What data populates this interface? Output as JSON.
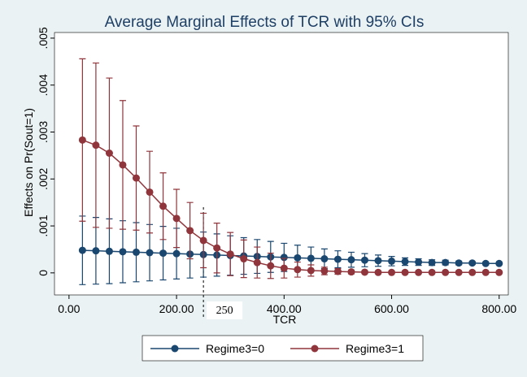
{
  "chart_data": {
    "type": "line",
    "title": "Average Marginal Effects of TCR with 95% CIs",
    "x_label": "TCR",
    "y_label": "Effects on Pr(Sout=1)",
    "x": [
      25,
      50,
      75,
      100,
      125,
      150,
      175,
      200,
      225,
      250,
      275,
      300,
      325,
      350,
      375,
      400,
      425,
      450,
      475,
      500,
      525,
      550,
      575,
      600,
      625,
      650,
      675,
      700,
      725,
      750,
      775,
      800
    ],
    "series": [
      {
        "name": "Regime3=0",
        "color": "#1a476f",
        "values": [
          0.00048,
          0.00047,
          0.00046,
          0.00045,
          0.00044,
          0.00043,
          0.00042,
          0.00041,
          0.0004,
          0.00039,
          0.00038,
          0.00037,
          0.00036,
          0.00035,
          0.00034,
          0.00033,
          0.00032,
          0.00031,
          0.0003,
          0.00029,
          0.00028,
          0.00027,
          0.00026,
          0.00025,
          0.00024,
          0.00023,
          0.00022,
          0.00022,
          0.00021,
          0.00021,
          0.0002,
          0.0002
        ],
        "errors": [
          0.00073,
          0.00071,
          0.00069,
          0.00066,
          0.00063,
          0.0006,
          0.00057,
          0.00054,
          0.00051,
          0.00048,
          0.00045,
          0.00042,
          0.00039,
          0.00036,
          0.00033,
          0.0003,
          0.00027,
          0.00024,
          0.00021,
          0.00018,
          0.00016,
          0.00014,
          0.00012,
          0.0001,
          8e-05,
          7e-05,
          6e-05,
          5e-05,
          4e-05,
          3e-05,
          3e-05,
          2e-05
        ]
      },
      {
        "name": "Regime3=1",
        "color": "#90353b",
        "values": [
          0.00283,
          0.00272,
          0.00255,
          0.0023,
          0.00202,
          0.00172,
          0.00142,
          0.00116,
          0.0009,
          0.00069,
          0.00053,
          0.0004,
          0.0003,
          0.00022,
          0.00015,
          0.0001,
          7e-05,
          5e-05,
          4e-05,
          3e-05,
          2e-05,
          1.5e-05,
          1e-05,
          1e-05,
          1e-05,
          1e-05,
          1e-05,
          1e-05,
          1e-05,
          1e-05,
          1e-05,
          1e-05
        ],
        "errors": [
          0.00173,
          0.00175,
          0.0016,
          0.00137,
          0.00111,
          0.00087,
          0.00071,
          0.00062,
          0.0006,
          0.00058,
          0.00053,
          0.00046,
          0.0004,
          0.00033,
          0.00027,
          0.00021,
          0.00016,
          0.00012,
          8e-05,
          6e-05,
          4e-05,
          3e-05,
          2e-05,
          2e-05,
          1e-05,
          1e-05,
          1e-05,
          1e-05,
          1e-05,
          1e-05,
          1e-05,
          1e-05
        ]
      }
    ],
    "xlim": [
      -27,
      817
    ],
    "ylim": [
      -0.00047,
      0.00512
    ],
    "xticks": [
      {
        "value": 0,
        "label": "0.00"
      },
      {
        "value": 200,
        "label": "200.00"
      },
      {
        "value": 400,
        "label": "400.00"
      },
      {
        "value": 600,
        "label": "600.00"
      },
      {
        "value": 800,
        "label": "800.00"
      }
    ],
    "yticks": [
      0,
      {
        "value": 0.001,
        "label": ".001"
      },
      {
        "value": 0.002,
        "label": ".002"
      },
      {
        "value": 0.003,
        "label": ".003"
      },
      {
        "value": 0.004,
        "label": ".004"
      },
      {
        "value": 0.005,
        "label": ".005"
      }
    ],
    "vline": 250,
    "legend": "bottom"
  }
}
